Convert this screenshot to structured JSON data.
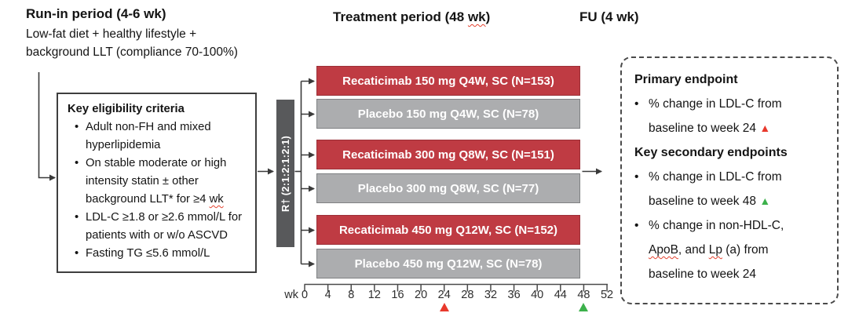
{
  "glyphs": {
    "bullet": "•"
  },
  "headers": {
    "run_in_title": "Run-in period (4-6 wk)",
    "run_in_desc1": "Low-fat diet + healthy lifestyle +",
    "run_in_desc2": "background LLT (compliance 70-100%)",
    "treatment_prefix": "Treatment period (48 ",
    "treatment_wk": "wk",
    "treatment_suffix": ")",
    "fu_title": "FU (4 wk)"
  },
  "eligibility": {
    "title": "Key eligibility criteria",
    "b1": "Adult non-FH and mixed hyperlipidemia",
    "b2_prefix": "On stable moderate or high intensity statin ± other background LLT* for ≥4 ",
    "b2_wk": "wk",
    "b3": "LDL-C ≥1.8 or ≥2.6 mmol/L for patients with or w/o ASCVD",
    "b4": "Fasting TG ≤5.6 mmol/L"
  },
  "randomization": {
    "label": "R† (2:1:2:1:2:1)"
  },
  "arms": [
    {
      "label": "Recaticimab 150 mg Q4W, SC (N=153)",
      "type": "active"
    },
    {
      "label": "Placebo 150 mg Q4W, SC (N=78)",
      "type": "placebo"
    },
    {
      "label": "Recaticimab 300 mg Q8W, SC (N=151)",
      "type": "active"
    },
    {
      "label": "Placebo 300 mg Q8W, SC (N=77)",
      "type": "placebo"
    },
    {
      "label": "Recaticimab 450 mg Q12W, SC (N=152)",
      "type": "active"
    },
    {
      "label": "Placebo 450 mg Q12W, SC (N=78)",
      "type": "placebo"
    }
  ],
  "axis": {
    "unit": "wk",
    "ticks": [
      "0",
      "4",
      "8",
      "12",
      "16",
      "20",
      "24",
      "28",
      "32",
      "36",
      "40",
      "44",
      "48",
      "52"
    ],
    "markers": [
      {
        "week": 24,
        "color": "#e8392c"
      },
      {
        "week": 48,
        "color": "#3cb14b"
      }
    ]
  },
  "endpoints": {
    "primary_title": "Primary endpoint",
    "p1_text": "% change in LDL-C from baseline to week 24 ",
    "p1_marker": "▲",
    "secondary_title": "Key secondary endpoints",
    "s1_text": "% change in LDL-C from baseline to week 48 ",
    "s1_marker": "▲",
    "s2_seg1": "% change in non-HDL-C, ",
    "s2_seg2": "ApoB",
    "s2_seg3": ", and ",
    "s2_seg4": "Lp",
    "s2_seg5": " (a) from baseline to week 24"
  },
  "colors": {
    "active_arm": "#bf3b43",
    "active_arm_border": "#9b2f37",
    "placebo_arm": "#acadaf",
    "placebo_arm_border": "#7f8183",
    "randomization_bar": "#58595b",
    "primary_marker": "#e8392c",
    "secondary_marker": "#3cb14b"
  }
}
